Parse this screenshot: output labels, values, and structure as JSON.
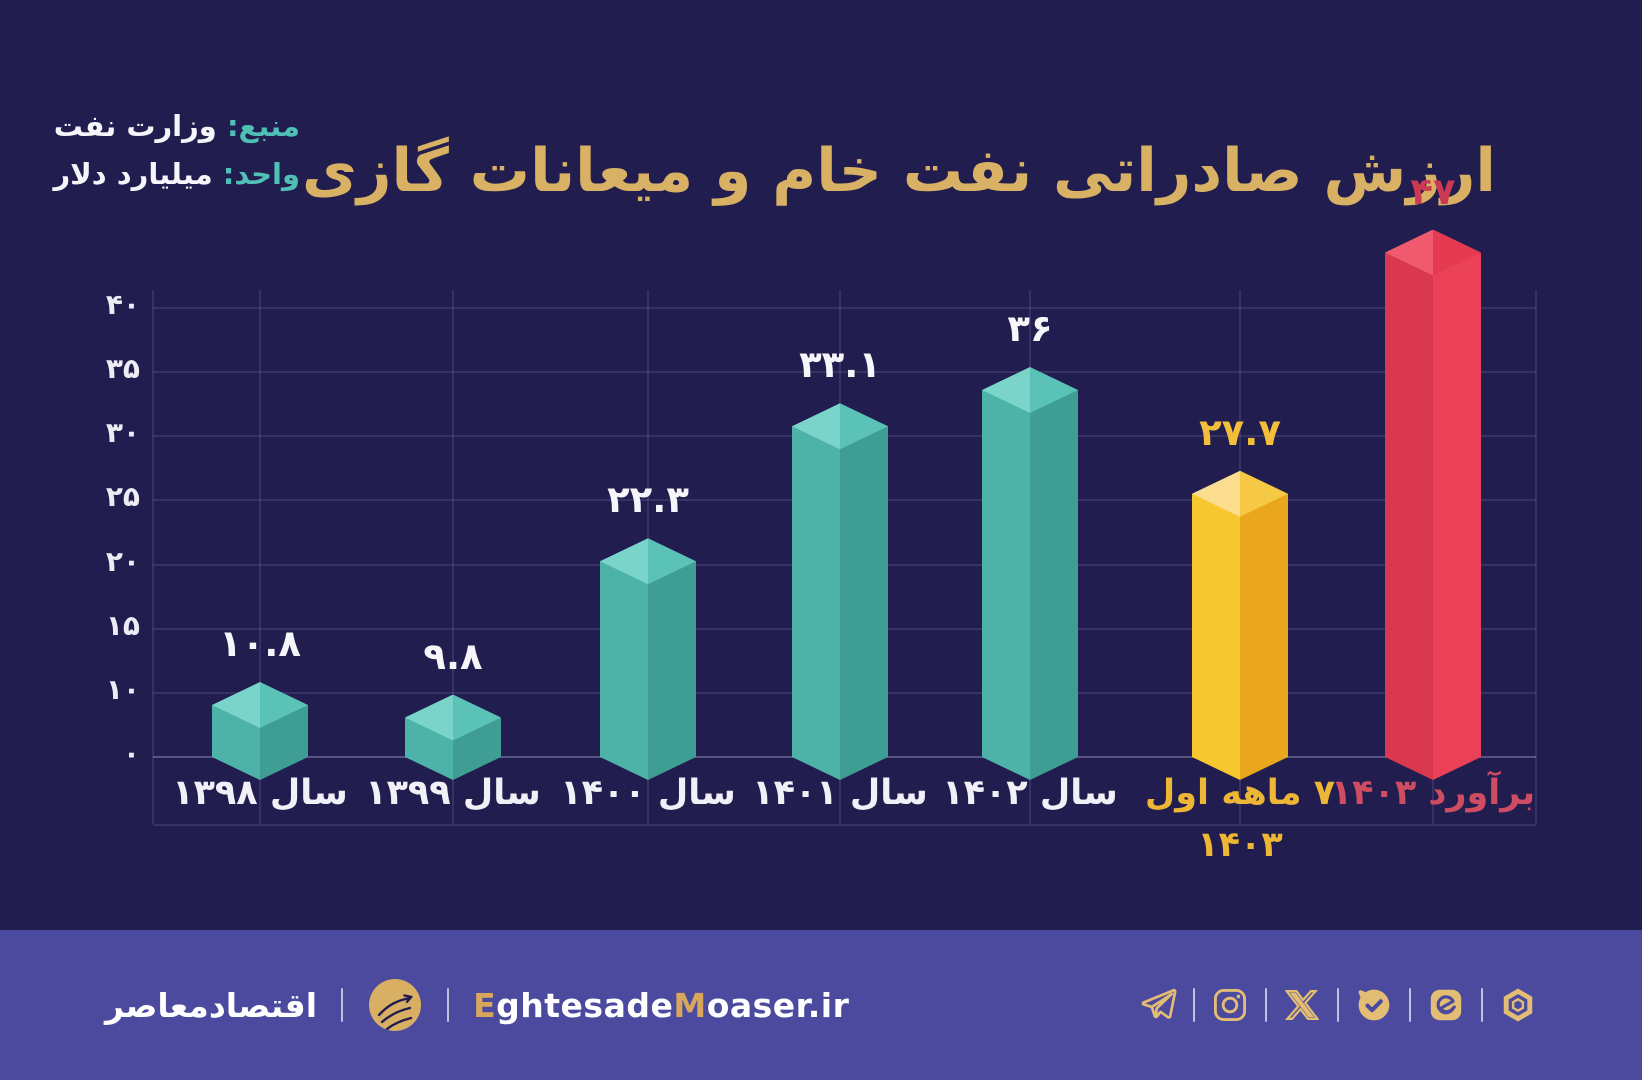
{
  "header": {
    "title": "ارزش صادراتی نفت خام و میعانات گازی",
    "source_label": "منبع:",
    "source_value": "وزارت نفت",
    "unit_label": "واحد:",
    "unit_value": "میلیارد دلار"
  },
  "chart_data": {
    "type": "bar",
    "title": "ارزش صادراتی نفت خام و میعانات گازی",
    "unit": "میلیارد دلار",
    "style": "isometric-3d-columns",
    "grid": true,
    "y_axis": {
      "ticks": [
        40,
        35,
        30,
        25,
        20,
        15,
        10,
        0
      ],
      "tick_labels": [
        "۴۰",
        "۳۵",
        "۳۰",
        "۲۵",
        "۲۰",
        "۱۵",
        "۱۰",
        "۰"
      ]
    },
    "bars": [
      {
        "label": "سال ۱۳۹۸",
        "value": 10.8,
        "value_label": "۱۰.۸",
        "color": "teal"
      },
      {
        "label": "سال ۱۳۹۹",
        "value": 9.8,
        "value_label": "۹.۸",
        "color": "teal"
      },
      {
        "label": "سال ۱۴۰۰",
        "value": 22.3,
        "value_label": "۲۲.۳",
        "color": "teal"
      },
      {
        "label": "سال ۱۴۰۱",
        "value": 33.1,
        "value_label": "۳۳.۱",
        "color": "teal"
      },
      {
        "label": "سال ۱۴۰۲",
        "value": 36,
        "value_label": "۳۶",
        "color": "teal"
      },
      {
        "label": "۷ ماهه اول",
        "label_line2": "۱۴۰۳",
        "value": 27.7,
        "value_label": "۲۷.۷",
        "color": "gold"
      },
      {
        "label": "برآورد ۱۴۰۳",
        "value": 47,
        "value_label": "۴۷",
        "color": "red"
      }
    ],
    "palette": {
      "teal": {
        "cap_l": "#7BD4CA",
        "cap_r": "#5BC2B7",
        "face_l": "#4DB3A8",
        "face_r": "#3F9E94",
        "value_color": "#F6F5FA",
        "label_color": "#F1F0F7"
      },
      "gold": {
        "cap_l": "#FBDD8F",
        "cap_r": "#F6C945",
        "face_l": "#F7C730",
        "face_r": "#EAA71E",
        "value_color": "#F3BF3B",
        "label_color": "#EDB634"
      },
      "red": {
        "cap_l": "#F15A6E",
        "cap_r": "#E43B52",
        "face_l": "#D9384F",
        "face_r": "#EA4156",
        "value_color": "#CB3A52",
        "label_color": "#CE4D63"
      }
    },
    "colors": {
      "background": "#211D4E",
      "grid": "rgba(167,162,216,0.16)",
      "baseline": "rgba(206,202,238,0.32)",
      "title": "#D8B164",
      "accent_teal": "#4EC0B5",
      "tick_text": "#EDECF5"
    }
  },
  "footer": {
    "background": "#4B4A9E",
    "brand_fa": "اقتصادمعاصر",
    "site": {
      "e": "E",
      "part1": "ghtesade",
      "m": "M",
      "part2": "oaser",
      "tld": ".ir"
    },
    "gold": "#E3BD74",
    "logo_gold": "#D9AF63",
    "social": [
      "telegram",
      "instagram",
      "x-twitter",
      "bale",
      "eitaa",
      "rubika"
    ]
  }
}
